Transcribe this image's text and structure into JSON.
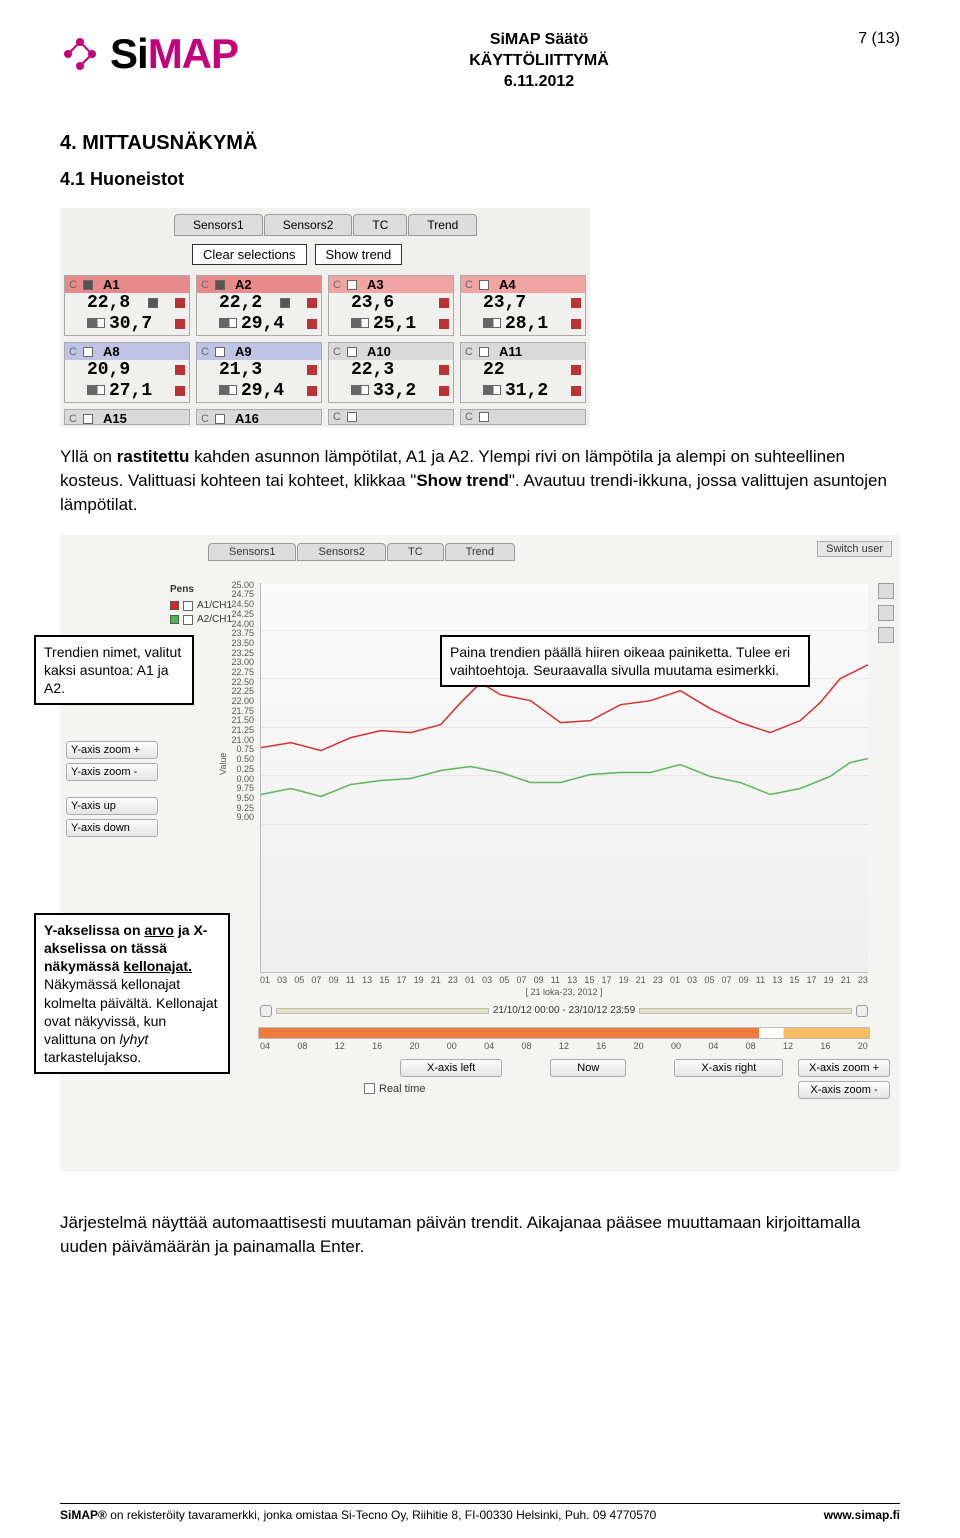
{
  "header": {
    "title1": "SiMAP Säätö",
    "title2": "KÄYTTÖLIITTYMÄ",
    "date": "6.11.2012",
    "page": "7 (13)"
  },
  "h1": "4. MITTAUSNÄKYMÄ",
  "h2": "4.1 Huoneistot",
  "sensors": {
    "tabs": [
      "Sensors1",
      "Sensors2",
      "TC",
      "Trend"
    ],
    "clear": "Clear selections",
    "show": "Show trend",
    "row1": [
      {
        "id": "A1",
        "v1": "22,8",
        "v2": "30,7",
        "cls": "red-bg",
        "chk": true
      },
      {
        "id": "A2",
        "v1": "22,2",
        "v2": "29,4",
        "cls": "red-bg",
        "chk": true
      },
      {
        "id": "A3",
        "v1": "23,6",
        "v2": "25,1",
        "cls": "lightred-bg"
      },
      {
        "id": "A4",
        "v1": "23,7",
        "v2": "28,1",
        "cls": "lightred-bg"
      }
    ],
    "row2": [
      {
        "id": "A8",
        "v1": "20,9",
        "v2": "27,1",
        "cls": "blue-bg"
      },
      {
        "id": "A9",
        "v1": "21,3",
        "v2": "29,4",
        "cls": "blue-bg"
      },
      {
        "id": "A10",
        "v1": "22,3",
        "v2": "33,2",
        "cls": "gray-bg"
      },
      {
        "id": "A11",
        "v1": "22",
        "v2": "31,2",
        "cls": "gray-bg"
      }
    ],
    "row3": [
      {
        "id": "A15",
        "cls": "gray-bg"
      },
      {
        "id": "A16",
        "cls": "gray-bg"
      },
      {
        "id": "",
        "cls": "gray-bg"
      },
      {
        "id": "",
        "cls": "gray-bg"
      }
    ]
  },
  "para1_a": "Yllä on ",
  "para1_b": "rastitettu",
  "para1_c": " kahden asunnon lämpötilat, A1 ja A2. Ylempi rivi on lämpötila ja alempi on suhteellinen kosteus. Valittuasi kohteen tai kohteet, klikkaa \"",
  "para1_d": "Show trend",
  "para1_e": "\". Avautuu trendi-ikkuna, jossa valittujen asuntojen lämpötilat.",
  "trend": {
    "tabs": [
      "Sensors1",
      "Sensors2",
      "TC",
      "Trend"
    ],
    "switch_user": "Switch user",
    "pens_title": "Pens",
    "pens": [
      "A1/CH1",
      "A2/CH1"
    ],
    "yzoom_plus": "Y-axis zoom +",
    "yzoom_minus": "Y-axis zoom -",
    "yup": "Y-axis up",
    "ydown": "Y-axis down",
    "ylabel": "Value",
    "yticks": [
      "25.00",
      "24.75",
      "24.50",
      "24.25",
      "24.00",
      "23.75",
      "23.50",
      "23.25",
      "23.00",
      "22.75",
      "22.50",
      "22.25",
      "22.00",
      "21.75",
      "21.50",
      "21.25",
      "21.00",
      "0.75",
      "0.50",
      "0.25",
      "0.00",
      "9.75",
      "9.50",
      "9.25",
      "9.00"
    ],
    "xticks": [
      "01",
      "03",
      "05",
      "07",
      "09",
      "11",
      "13",
      "15",
      "17",
      "19",
      "21",
      "23",
      "01",
      "03",
      "05",
      "07",
      "09",
      "11",
      "13",
      "15",
      "17",
      "19",
      "21",
      "23",
      "01",
      "03",
      "05",
      "07",
      "09",
      "11",
      "13",
      "15",
      "17",
      "19",
      "21",
      "23"
    ],
    "date_center": "[ 21 loka-23, 2012 ]",
    "range_text": "21/10/12 00:00 - 23/10/12 23:59",
    "bar_ticks": [
      "04",
      "08",
      "12",
      "16",
      "20",
      "00",
      "04",
      "08",
      "12",
      "16",
      "20",
      "00",
      "04",
      "08",
      "12",
      "16",
      "20"
    ],
    "xleft": "X-axis left",
    "now": "Now",
    "xright": "X-axis right",
    "xzoom_plus": "X-axis zoom +",
    "xzoom_minus": "X-axis zoom -",
    "realtime": "Real time",
    "red_line": "#d83030",
    "green_line": "#58b858"
  },
  "callout1": "Trendien nimet, valitut kaksi asuntoa: A1 ja A2.",
  "callout2": "Paina trendien päällä hiiren oikeaa painiketta. Tulee eri vaihtoehtoja. Seuraavalla sivulla muutama esimerkki.",
  "callout3_a": "Y-akselissa on ",
  "callout3_b": "arvo",
  "callout3_c": " ja X-akselissa on tässä näkymässä ",
  "callout3_d": "kellonajat.",
  "callout3_e": " Näkymässä kellonajat kolmelta päivältä. Kellonajat ovat näkyvissä, kun valittuna on ",
  "callout3_f": "lyhyt",
  "callout3_g": " tarkastelujakso.",
  "para2": "Järjestelmä näyttää automaattisesti muutaman päivän trendit. Aikajanaa pääsee muuttamaan kirjoittamalla uuden päivämäärän ja painamalla Enter.",
  "footer_left": "SiMAP® on rekisteröity tavaramerkki, jonka omistaa Si-Tecno Oy, Riihitie 8, FI-00330 Helsinki, Puh. 09 4770570",
  "footer_right": "www.simap.fi"
}
